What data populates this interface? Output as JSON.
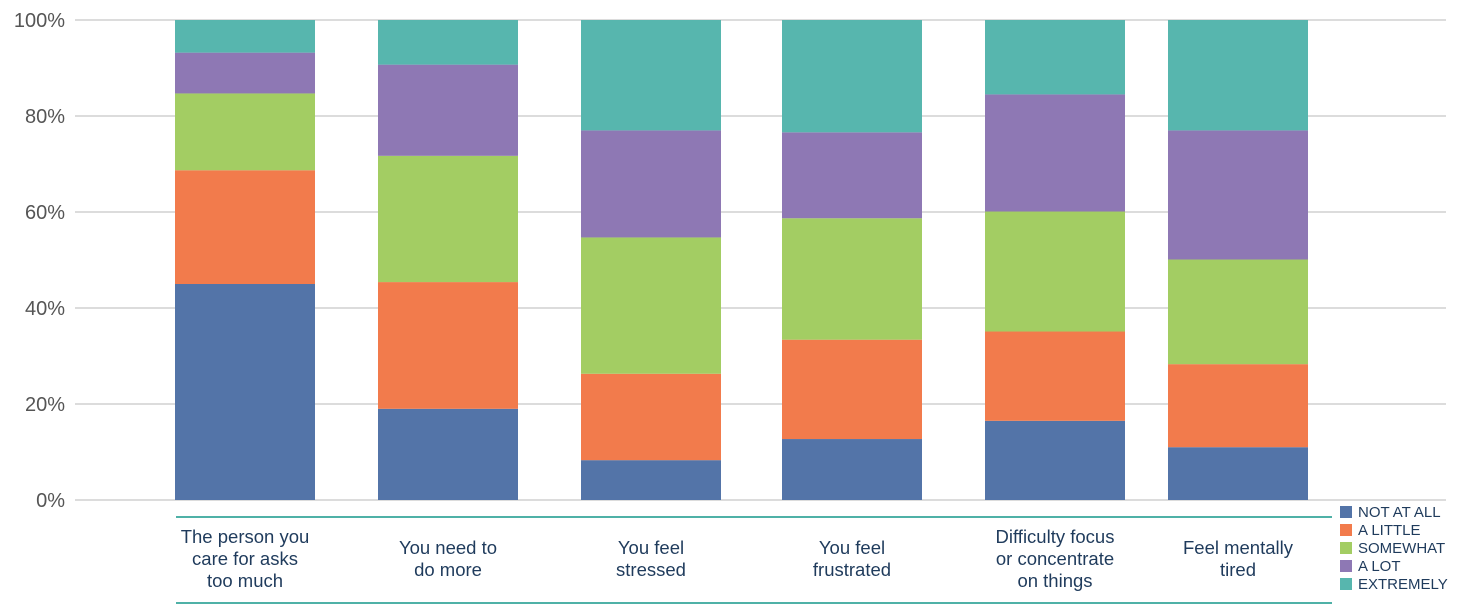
{
  "chart_data": {
    "type": "bar",
    "stacked": true,
    "title": "",
    "xlabel": "",
    "ylabel": "",
    "ylim": [
      0,
      100
    ],
    "y_ticks": [
      "0%",
      "20%",
      "40%",
      "60%",
      "80%",
      "100%"
    ],
    "grid": true,
    "legend_position": "bottom-right",
    "categories": [
      [
        "The person you",
        "care for asks",
        "too much"
      ],
      [
        "You need to",
        "do more"
      ],
      [
        "You feel",
        "stressed"
      ],
      [
        "You feel",
        "frustrated"
      ],
      [
        "Difficulty focus",
        "or concentrate",
        "on things"
      ],
      [
        "Feel mentally",
        "tired"
      ]
    ],
    "series": [
      {
        "name": "NOT AT ALL",
        "color": "#5374a8",
        "values": [
          45,
          19,
          8.3,
          12.7,
          16.5,
          11
        ]
      },
      {
        "name": "A LITTLE",
        "color": "#f27b4c",
        "values": [
          23.7,
          26.4,
          18,
          20.7,
          18.6,
          17.3
        ]
      },
      {
        "name": "SOMEWHAT",
        "color": "#a3cd63",
        "values": [
          16,
          26.3,
          28.4,
          25.3,
          25,
          21.8
        ]
      },
      {
        "name": "A LOT",
        "color": "#8e78b4",
        "values": [
          8.5,
          19,
          22.3,
          17.9,
          24.4,
          26.9
        ]
      },
      {
        "name": "EXTREMELY",
        "color": "#57b6ae",
        "values": [
          6.8,
          9.3,
          23,
          23.4,
          15.5,
          23
        ]
      }
    ]
  }
}
